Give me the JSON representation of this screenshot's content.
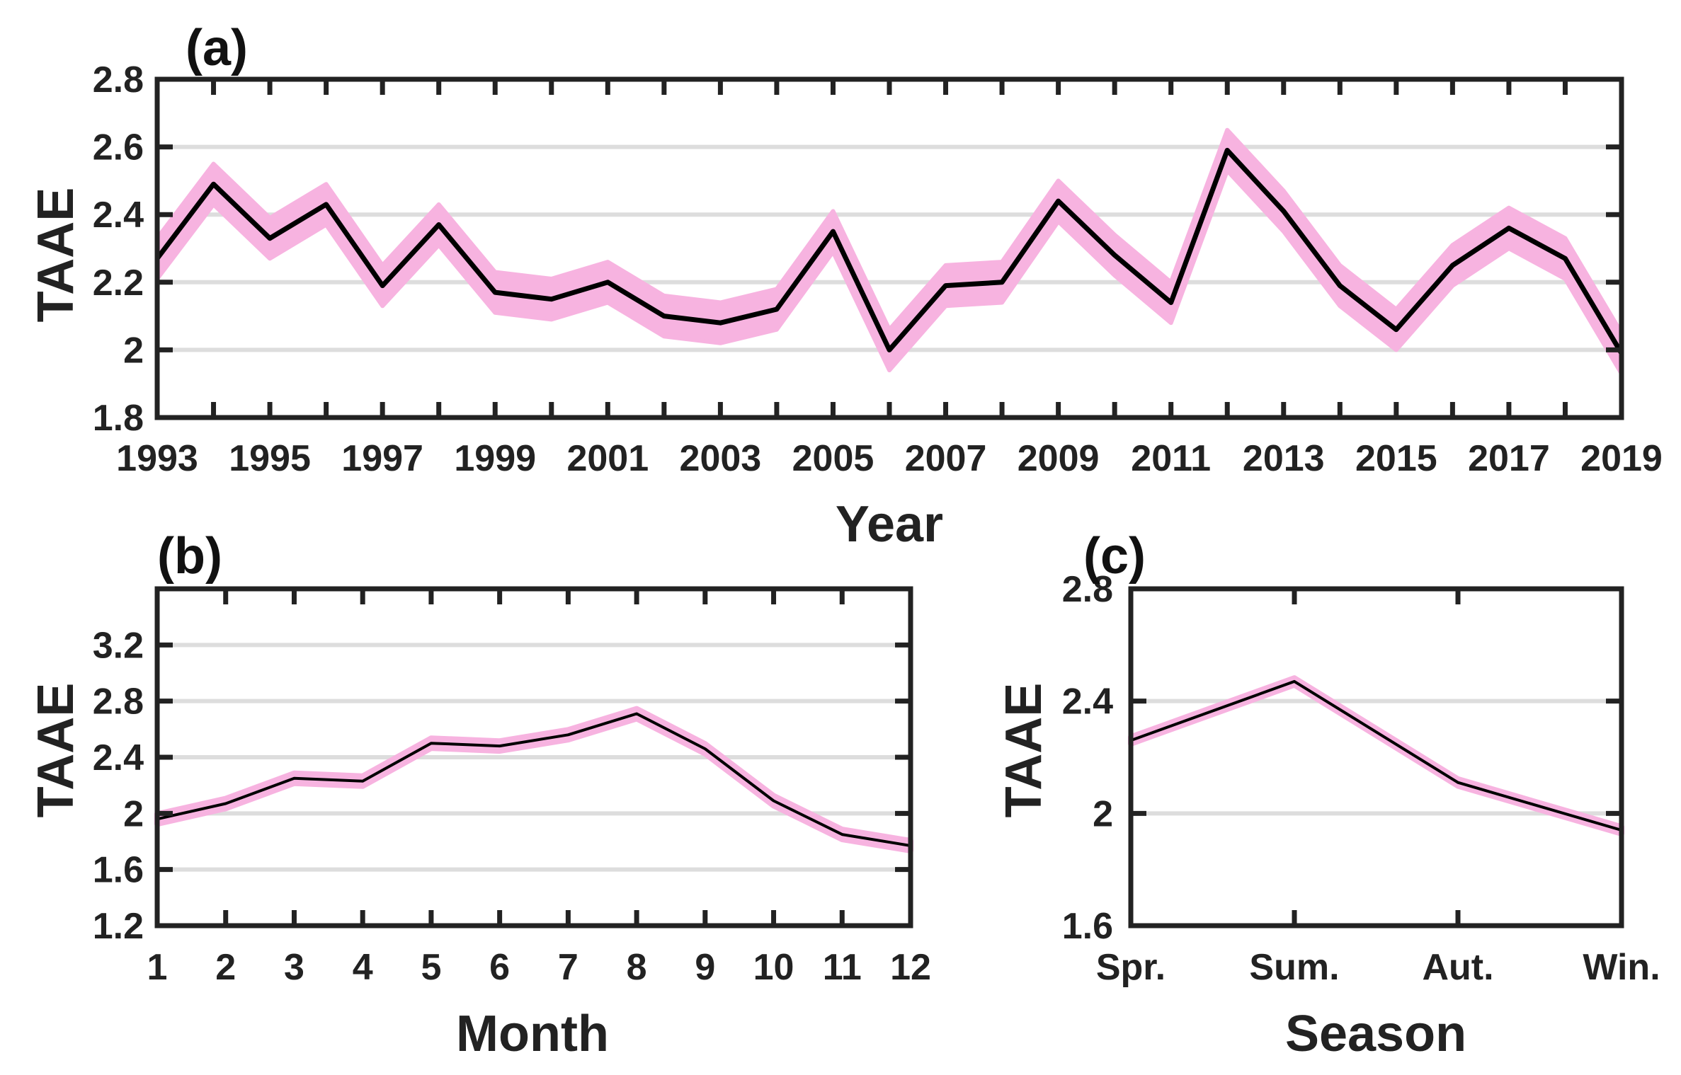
{
  "colors": {
    "line": "#000000",
    "band": "#f7b3e0",
    "grid": "#dddddd",
    "frame": "#222222"
  },
  "chart_data": [
    {
      "panel": "(a)",
      "type": "line",
      "xlabel": "Year",
      "ylabel": "TAAE",
      "xlim": [
        1993,
        2019
      ],
      "ylim": [
        1.8,
        2.8
      ],
      "yticks": [
        "1.8",
        "2",
        "2.2",
        "2.4",
        "2.6",
        "2.8"
      ],
      "xtick_labels": [
        "1993",
        "1995",
        "1997",
        "1999",
        "2001",
        "2003",
        "2005",
        "2007",
        "2009",
        "2011",
        "2013",
        "2015",
        "2017",
        "2019"
      ],
      "x": [
        1993,
        1994,
        1995,
        1996,
        1997,
        1998,
        1999,
        2000,
        2001,
        2002,
        2003,
        2004,
        2005,
        2006,
        2007,
        2008,
        2009,
        2010,
        2011,
        2012,
        2013,
        2014,
        2015,
        2016,
        2017,
        2018,
        2019
      ],
      "values": [
        2.27,
        2.49,
        2.33,
        2.43,
        2.19,
        2.37,
        2.17,
        2.15,
        2.2,
        2.1,
        2.08,
        2.12,
        2.35,
        2.0,
        2.19,
        2.2,
        2.44,
        2.28,
        2.14,
        2.59,
        2.41,
        2.19,
        2.06,
        2.25,
        2.36,
        2.27,
        1.99
      ],
      "band": 0.06
    },
    {
      "panel": "(b)",
      "type": "line",
      "xlabel": "Month",
      "ylabel": "TAAE",
      "xlim": [
        1,
        12
      ],
      "ylim": [
        1.2,
        3.6
      ],
      "yticks": [
        "1.2",
        "1.6",
        "2",
        "2.4",
        "2.8",
        "3.2"
      ],
      "xtick_labels": [
        "1",
        "2",
        "3",
        "4",
        "5",
        "6",
        "7",
        "8",
        "9",
        "10",
        "11",
        "12"
      ],
      "x": [
        1,
        2,
        3,
        4,
        5,
        6,
        7,
        8,
        9,
        10,
        11,
        12
      ],
      "values": [
        1.96,
        2.07,
        2.25,
        2.23,
        2.5,
        2.48,
        2.56,
        2.71,
        2.46,
        2.09,
        1.85,
        1.77
      ],
      "band": 0.035
    },
    {
      "panel": "(c)",
      "type": "line",
      "xlabel": "Season",
      "ylabel": "TAAE",
      "xlim": [
        1,
        4
      ],
      "ylim": [
        1.6,
        2.8
      ],
      "yticks": [
        "1.6",
        "2",
        "2.4",
        "2.8"
      ],
      "xtick_labels": [
        "Spr.",
        "Sum.",
        "Aut.",
        "Win."
      ],
      "x": [
        1,
        2,
        3,
        4
      ],
      "values": [
        2.26,
        2.47,
        2.11,
        1.94
      ],
      "band": 0.012
    }
  ]
}
